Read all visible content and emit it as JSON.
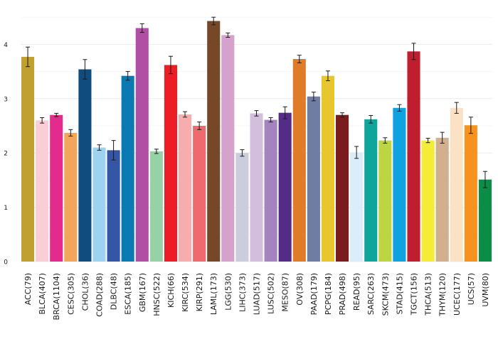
{
  "chart_data": {
    "type": "bar",
    "title": "",
    "xlabel": "",
    "ylabel": "",
    "ylim": [
      0,
      4.5
    ],
    "yticks": [
      0,
      1,
      2,
      3,
      4
    ],
    "grid": true,
    "legend": "none",
    "error_bars": true,
    "bars": [
      {
        "label": "ACC(79)",
        "value": 3.77,
        "err": 0.18,
        "color": "#C0A030"
      },
      {
        "label": "BLCA(407)",
        "value": 2.6,
        "err": 0.05,
        "color": "#F9CED6"
      },
      {
        "label": "BRCA(1104)",
        "value": 2.7,
        "err": 0.03,
        "color": "#E32B8E"
      },
      {
        "label": "CESC(305)",
        "value": 2.37,
        "err": 0.06,
        "color": "#F2A65C"
      },
      {
        "label": "CHOL(36)",
        "value": 3.54,
        "err": 0.18,
        "color": "#104C7E"
      },
      {
        "label": "COAD(288)",
        "value": 2.1,
        "err": 0.05,
        "color": "#9ED3EE"
      },
      {
        "label": "DLBC(48)",
        "value": 2.05,
        "err": 0.18,
        "color": "#3456A5"
      },
      {
        "label": "ESCA(185)",
        "value": 3.42,
        "err": 0.08,
        "color": "#0B7AB3"
      },
      {
        "label": "GBM(167)",
        "value": 4.3,
        "err": 0.08,
        "color": "#B04FA4"
      },
      {
        "label": "HNSC(522)",
        "value": 2.03,
        "err": 0.04,
        "color": "#97D1A8"
      },
      {
        "label": "KICH(66)",
        "value": 3.62,
        "err": 0.16,
        "color": "#EC1D24"
      },
      {
        "label": "KIRC(534)",
        "value": 2.71,
        "err": 0.05,
        "color": "#F7ADAE"
      },
      {
        "label": "KIRP(291)",
        "value": 2.5,
        "err": 0.07,
        "color": "#EE6A6E"
      },
      {
        "label": "LAML(173)",
        "value": 4.43,
        "err": 0.07,
        "color": "#774827"
      },
      {
        "label": "LGG(530)",
        "value": 4.17,
        "err": 0.04,
        "color": "#D4A2CB"
      },
      {
        "label": "LIHC(373)",
        "value": 2.0,
        "err": 0.06,
        "color": "#CBCCDC"
      },
      {
        "label": "LUAD(517)",
        "value": 2.73,
        "err": 0.05,
        "color": "#D3BEDE"
      },
      {
        "label": "LUSC(502)",
        "value": 2.61,
        "err": 0.04,
        "color": "#A384BE"
      },
      {
        "label": "MESO(87)",
        "value": 2.74,
        "err": 0.11,
        "color": "#542C87"
      },
      {
        "label": "OV(308)",
        "value": 3.73,
        "err": 0.07,
        "color": "#E07B2A"
      },
      {
        "label": "PAAD(179)",
        "value": 3.04,
        "err": 0.08,
        "color": "#6F7DA3"
      },
      {
        "label": "PCPG(184)",
        "value": 3.42,
        "err": 0.09,
        "color": "#E8C62D"
      },
      {
        "label": "PRAD(498)",
        "value": 2.7,
        "err": 0.04,
        "color": "#7A1B1E"
      },
      {
        "label": "READ(95)",
        "value": 2.01,
        "err": 0.11,
        "color": "#DAEDF8"
      },
      {
        "label": "SARC(263)",
        "value": 2.62,
        "err": 0.07,
        "color": "#10A59A"
      },
      {
        "label": "SKCM(473)",
        "value": 2.23,
        "err": 0.05,
        "color": "#BDD443"
      },
      {
        "label": "STAD(415)",
        "value": 2.83,
        "err": 0.06,
        "color": "#0EA2E0"
      },
      {
        "label": "TGCT(156)",
        "value": 3.87,
        "err": 0.15,
        "color": "#BF1E2E"
      },
      {
        "label": "THCA(513)",
        "value": 2.23,
        "err": 0.04,
        "color": "#F4EC37"
      },
      {
        "label": "THYM(120)",
        "value": 2.28,
        "err": 0.1,
        "color": "#D2AF8D"
      },
      {
        "label": "UCEC(177)",
        "value": 2.83,
        "err": 0.1,
        "color": "#FBE2C5"
      },
      {
        "label": "UCS(57)",
        "value": 2.51,
        "err": 0.15,
        "color": "#F7921E"
      },
      {
        "label": "UVM(80)",
        "value": 1.51,
        "err": 0.15,
        "color": "#0B8D48"
      }
    ]
  }
}
